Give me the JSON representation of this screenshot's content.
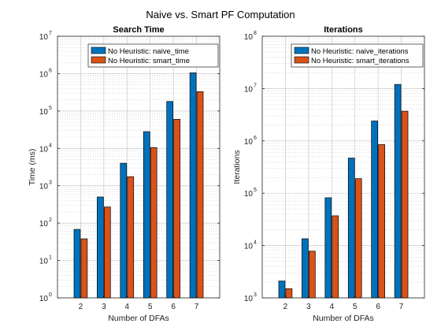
{
  "figure_title": "Naive vs. Smart PF Computation",
  "colors": {
    "series1": "#0072BD",
    "series2": "#D95319",
    "grid": "#c8c8c8",
    "axis": "#262626"
  },
  "chart_data": [
    {
      "type": "bar",
      "title": "Search Time",
      "xlabel": "Number of DFAs",
      "ylabel": "Time (ms)",
      "yscale": "log",
      "ylim": [
        1,
        10000000
      ],
      "ytick_exponents": [
        0,
        1,
        2,
        3,
        4,
        5,
        6,
        7
      ],
      "ytick_base": "10",
      "categories": [
        "2",
        "3",
        "4",
        "5",
        "6",
        "7"
      ],
      "grid": true,
      "legend_position": "top-right",
      "series": [
        {
          "name": "No Heuristic: naive_time",
          "values": [
            68,
            500,
            4000,
            28000,
            180000,
            1050000
          ]
        },
        {
          "name": "No Heuristic: smart_time",
          "values": [
            38,
            270,
            1750,
            10500,
            60000,
            330000
          ]
        }
      ]
    },
    {
      "type": "bar",
      "title": "Iterations",
      "xlabel": "Number of DFAs",
      "ylabel": "Iterations",
      "yscale": "log",
      "ylim": [
        1000,
        100000000
      ],
      "ytick_exponents": [
        3,
        4,
        5,
        6,
        7,
        8
      ],
      "ytick_base": "10",
      "categories": [
        "2",
        "3",
        "4",
        "5",
        "6",
        "7"
      ],
      "grid": true,
      "legend_position": "top-right",
      "series": [
        {
          "name": "No Heuristic: naive_iterations",
          "values": [
            2100,
            13500,
            82000,
            470000,
            2400000,
            12000000
          ]
        },
        {
          "name": "No Heuristic: smart_iterations",
          "values": [
            1500,
            7800,
            37000,
            190000,
            850000,
            3700000
          ]
        }
      ]
    }
  ]
}
